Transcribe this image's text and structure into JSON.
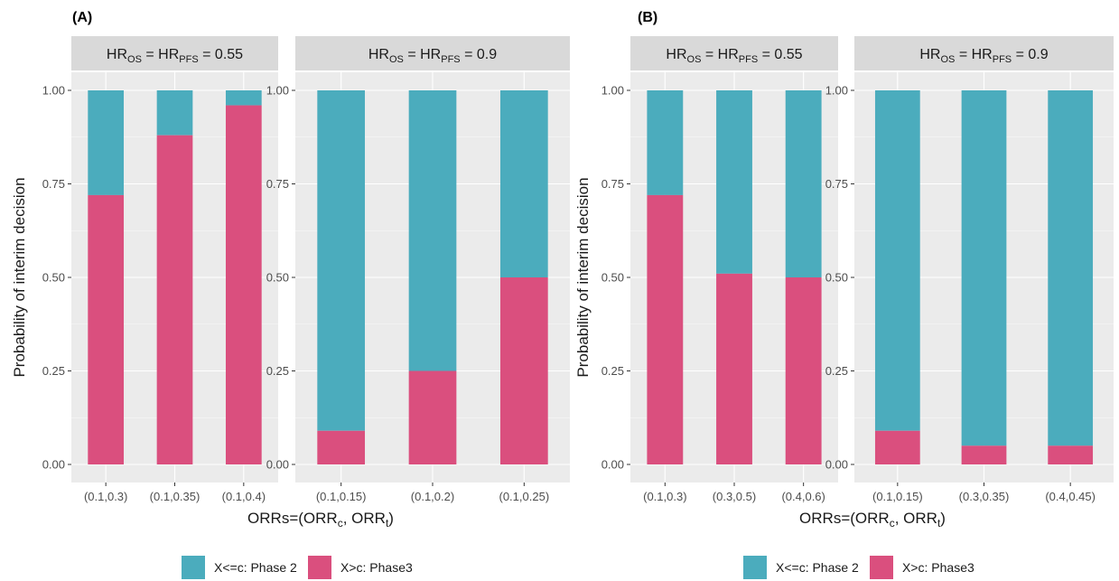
{
  "chart_data": {
    "type": "bar",
    "stacked": true,
    "grid": true,
    "legend_position": "bottom",
    "y_axis_label": "Probability of interim decision",
    "x_axis_label": {
      "main": "ORRs=(ORR",
      "sub_c": "c",
      "mid": ", ORR",
      "sub_t": "t",
      "end": ")"
    },
    "y_ticks": [
      "0.00",
      "0.25",
      "0.50",
      "0.75",
      "1.00"
    ],
    "ylim": [
      0,
      1
    ],
    "legend": [
      {
        "label": "X<=c: Phase 2",
        "color": "#4bacbd"
      },
      {
        "label": "X>c: Phase3",
        "color": "#da4f7e"
      }
    ],
    "figures": [
      {
        "letter": "(A)",
        "facets": [
          {
            "strip": {
              "a": "HR",
              "a_sub": "OS",
              "eq1": " = HR",
              "b_sub": "PFS",
              "val": " = 0.55"
            },
            "categories": [
              "(0.1,0.3)",
              "(0.1,0.35)",
              "(0.1,0.4)"
            ],
            "series": [
              {
                "name": "X>c: Phase3",
                "values": [
                  0.72,
                  0.88,
                  0.96
                ]
              },
              {
                "name": "X<=c: Phase 2",
                "values": [
                  0.28,
                  0.12,
                  0.04
                ]
              }
            ]
          },
          {
            "strip": {
              "a": "HR",
              "a_sub": "OS",
              "eq1": " = HR",
              "b_sub": "PFS",
              "val": " = 0.9"
            },
            "categories": [
              "(0.1,0.15)",
              "(0.1,0.2)",
              "(0.1,0.25)"
            ],
            "series": [
              {
                "name": "X>c: Phase3",
                "values": [
                  0.09,
                  0.25,
                  0.5
                ]
              },
              {
                "name": "X<=c: Phase 2",
                "values": [
                  0.91,
                  0.75,
                  0.5
                ]
              }
            ]
          }
        ]
      },
      {
        "letter": "(B)",
        "facets": [
          {
            "strip": {
              "a": "HR",
              "a_sub": "OS",
              "eq1": " = HR",
              "b_sub": "PFS",
              "val": " = 0.55"
            },
            "categories": [
              "(0.1,0.3)",
              "(0.3,0.5)",
              "(0.4,0.6)"
            ],
            "series": [
              {
                "name": "X>c: Phase3",
                "values": [
                  0.72,
                  0.51,
                  0.5
                ]
              },
              {
                "name": "X<=c: Phase 2",
                "values": [
                  0.28,
                  0.49,
                  0.5
                ]
              }
            ]
          },
          {
            "strip": {
              "a": "HR",
              "a_sub": "OS",
              "eq1": " = HR",
              "b_sub": "PFS",
              "val": " = 0.9"
            },
            "categories": [
              "(0.1,0.15)",
              "(0.3,0.35)",
              "(0.4,0.45)"
            ],
            "series": [
              {
                "name": "X>c: Phase3",
                "values": [
                  0.09,
                  0.05,
                  0.05
                ]
              },
              {
                "name": "X<=c: Phase 2",
                "values": [
                  0.91,
                  0.95,
                  0.95
                ]
              }
            ]
          }
        ]
      }
    ]
  }
}
